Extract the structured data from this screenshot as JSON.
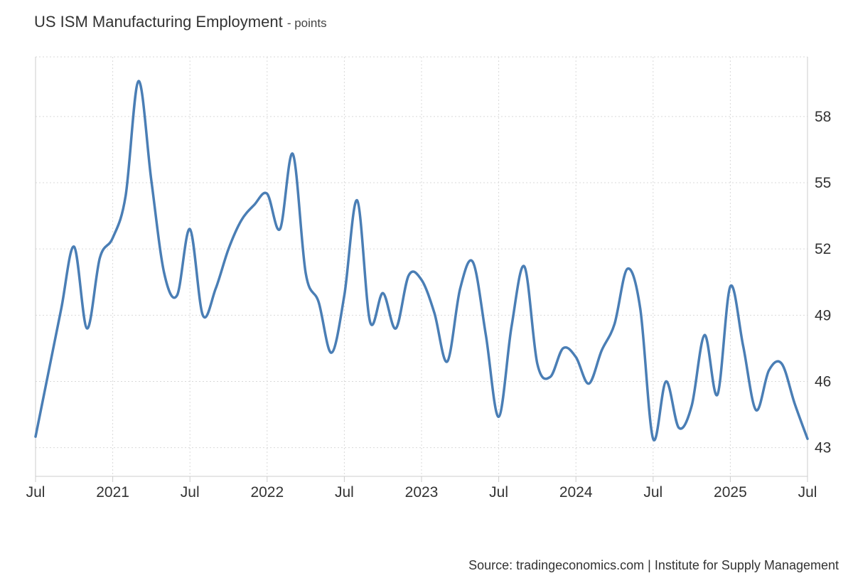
{
  "header": {
    "title": "US ISM Manufacturing Employment",
    "unit_suffix": "- points"
  },
  "footer": {
    "source": "Source: tradingeconomics.com | Institute for Supply Management"
  },
  "colors": {
    "line": "#4a7eb5",
    "grid": "#d9d9d9",
    "axis": "#cccccc"
  },
  "chart_data": {
    "type": "line",
    "title": "US ISM Manufacturing Employment",
    "unit": "points",
    "xlabel": "",
    "ylabel": "",
    "ylim": [
      42,
      61
    ],
    "y_ticks": [
      43,
      46,
      49,
      52,
      55,
      58
    ],
    "grid": true,
    "x_ticks": [
      {
        "date": "2020-07",
        "label": "Jul"
      },
      {
        "date": "2021-01",
        "label": "2021"
      },
      {
        "date": "2021-07",
        "label": "Jul"
      },
      {
        "date": "2022-01",
        "label": "2022"
      },
      {
        "date": "2022-07",
        "label": "Jul"
      },
      {
        "date": "2023-01",
        "label": "2023"
      },
      {
        "date": "2023-07",
        "label": "Jul"
      },
      {
        "date": "2024-01",
        "label": "2024"
      },
      {
        "date": "2024-07",
        "label": "Jul"
      },
      {
        "date": "2025-01",
        "label": "2025"
      },
      {
        "date": "2025-07",
        "label": "Jul"
      }
    ],
    "series": [
      {
        "x": [
          "2020-07",
          "2020-08",
          "2020-09",
          "2020-10",
          "2020-11",
          "2020-12",
          "2021-01",
          "2021-02",
          "2021-03",
          "2021-04",
          "2021-05",
          "2021-06",
          "2021-07",
          "2021-08",
          "2021-09",
          "2021-10",
          "2021-11",
          "2021-12",
          "2022-01",
          "2022-02",
          "2022-03",
          "2022-04",
          "2022-05",
          "2022-06",
          "2022-07",
          "2022-08",
          "2022-09",
          "2022-10",
          "2022-11",
          "2022-12",
          "2023-01",
          "2023-02",
          "2023-03",
          "2023-04",
          "2023-05",
          "2023-06",
          "2023-07",
          "2023-08",
          "2023-09",
          "2023-10",
          "2023-11",
          "2023-12",
          "2024-01",
          "2024-02",
          "2024-03",
          "2024-04",
          "2024-05",
          "2024-06",
          "2024-07",
          "2024-08",
          "2024-09",
          "2024-10",
          "2024-11",
          "2024-12",
          "2025-01",
          "2025-02",
          "2025-03",
          "2025-04",
          "2025-05",
          "2025-06",
          "2025-07"
        ],
        "values": [
          43.5,
          46.4,
          49.3,
          52.1,
          48.4,
          51.6,
          52.5,
          54.4,
          59.6,
          55.1,
          50.9,
          49.9,
          52.9,
          49.0,
          50.2,
          52.0,
          53.3,
          54.0,
          54.5,
          52.9,
          56.3,
          50.9,
          49.6,
          47.3,
          49.9,
          54.2,
          48.7,
          50.0,
          48.4,
          50.8,
          50.6,
          49.1,
          46.9,
          50.2,
          51.4,
          48.1,
          44.4,
          48.5,
          51.2,
          46.8,
          46.2,
          47.5,
          47.1,
          45.9,
          47.4,
          48.6,
          51.1,
          49.3,
          43.4,
          46.0,
          43.9,
          44.9,
          48.1,
          45.4,
          50.3,
          47.6,
          44.7,
          46.5,
          46.8,
          45.0,
          43.4
        ]
      }
    ]
  }
}
